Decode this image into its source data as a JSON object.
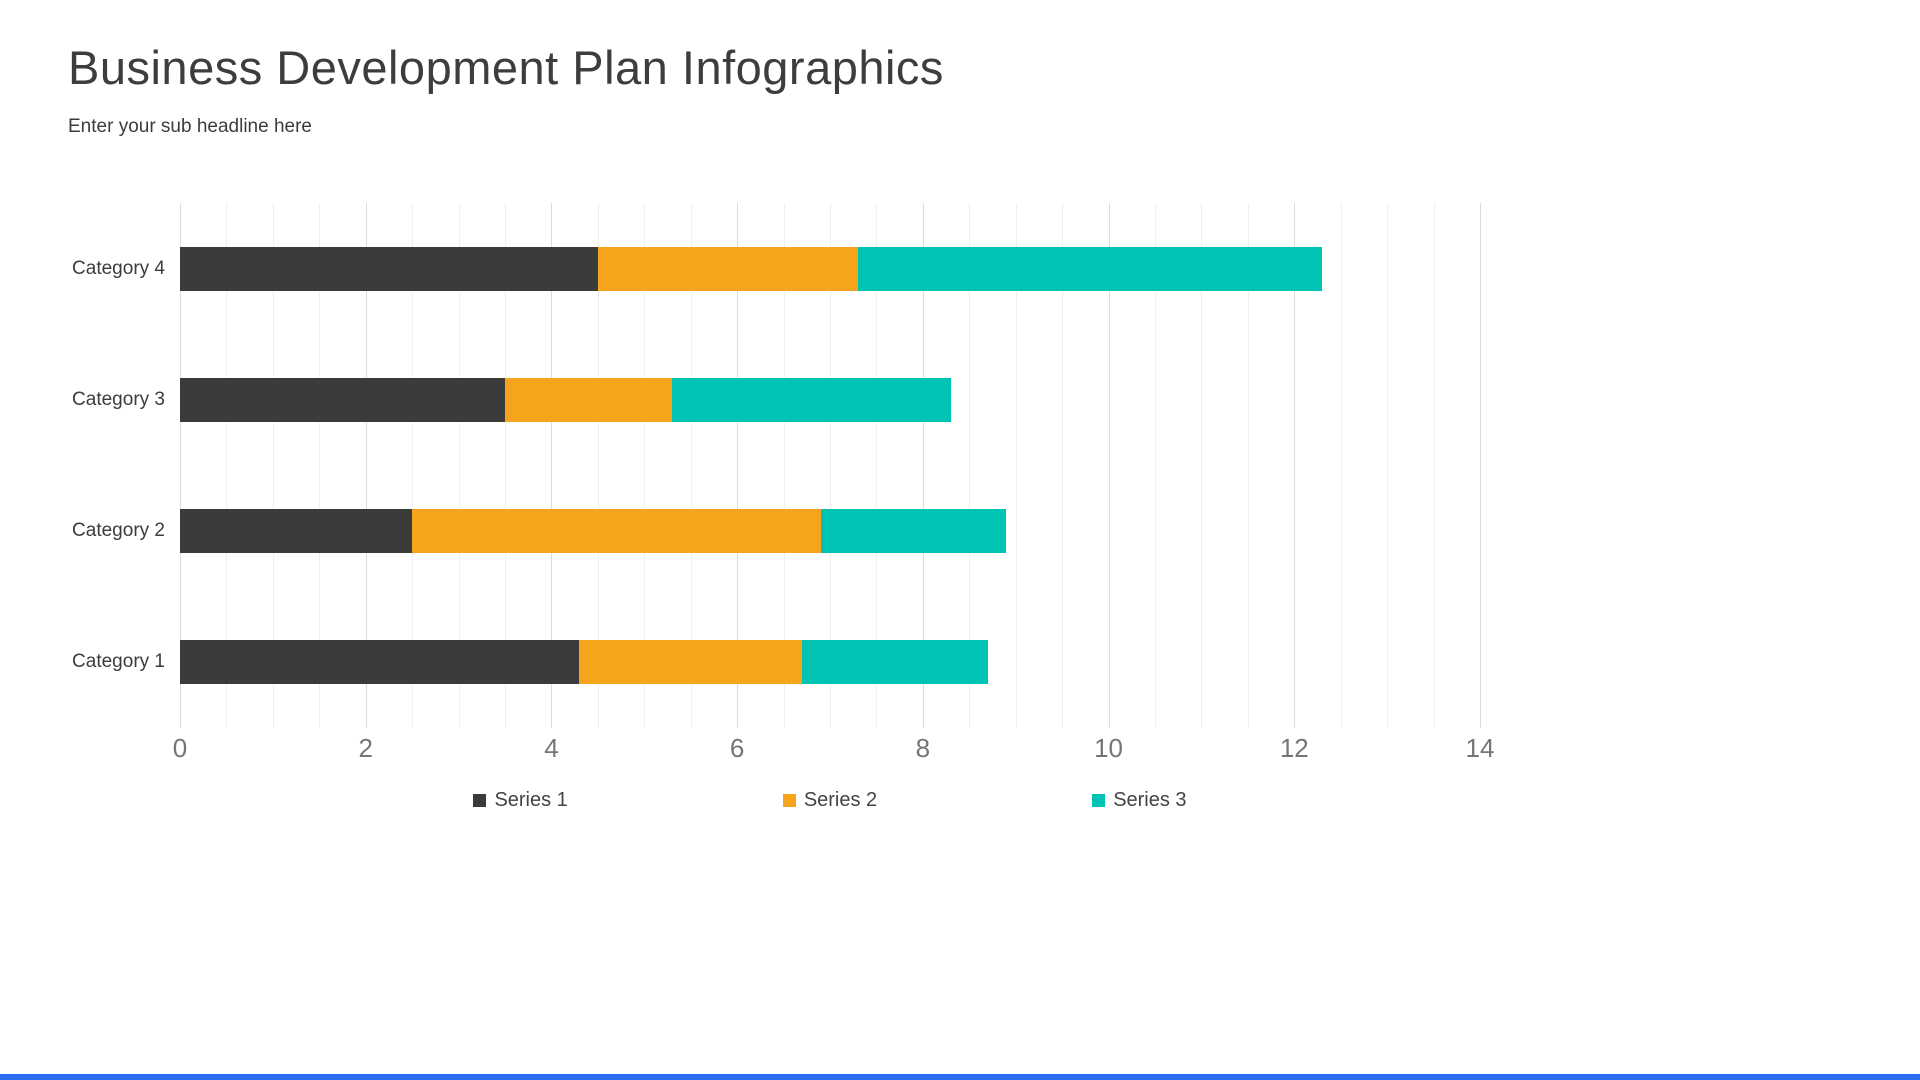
{
  "header": {
    "title": "Business Development Plan Infographics",
    "subtitle": "Enter your sub headline here"
  },
  "chart_data": {
    "type": "bar",
    "orientation": "horizontal",
    "stacked": true,
    "title": "Business Development Plan Infographics",
    "subtitle": "Enter your sub headline here",
    "categories": [
      "Category 1",
      "Category 2",
      "Category 3",
      "Category 4"
    ],
    "category_order_top_to_bottom": [
      "Category 4",
      "Category 3",
      "Category 2",
      "Category 1"
    ],
    "series": [
      {
        "name": "Series 1",
        "color": "#3b3b3b",
        "values": [
          4.3,
          2.5,
          3.5,
          4.5
        ]
      },
      {
        "name": "Series 2",
        "color": "#f6a41c",
        "values": [
          2.4,
          4.4,
          1.8,
          2.8
        ]
      },
      {
        "name": "Series 3",
        "color": "#00c3b4",
        "values": [
          2.0,
          2.0,
          3.0,
          5.0
        ]
      }
    ],
    "xlim": [
      0,
      14
    ],
    "xticks": [
      0,
      2,
      4,
      6,
      8,
      10,
      12,
      14
    ],
    "minor_tick_step": 0.5,
    "grid": true,
    "legend_position": "bottom"
  },
  "accent": {
    "footer_bar_color": "#2a6df4"
  }
}
